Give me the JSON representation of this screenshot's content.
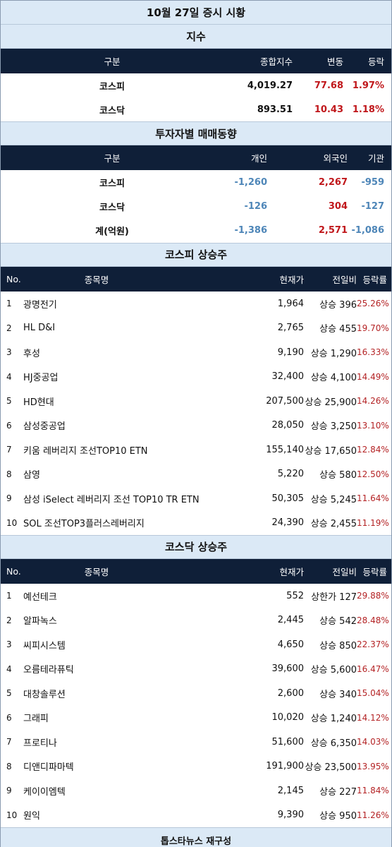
{
  "title": "10월 27일 증시 시황",
  "index_section": {
    "title": "지수",
    "headers": [
      "구분",
      "종합지수",
      "변동",
      "등락"
    ],
    "rows": [
      {
        "name": "코스피",
        "value": "4,019.27",
        "change": "77.68",
        "pct": "1.97%"
      },
      {
        "name": "코스닥",
        "value": "893.51",
        "change": "10.43",
        "pct": "1.18%"
      }
    ]
  },
  "investor_section": {
    "title": "투자자별 매매동향",
    "headers": [
      "구분",
      "개인",
      "외국인",
      "기관"
    ],
    "rows": [
      {
        "name": "코스피",
        "individual": "-1,260",
        "foreign": "2,267",
        "institution": "-959"
      },
      {
        "name": "코스닥",
        "individual": "-126",
        "foreign": "304",
        "institution": "-127"
      },
      {
        "name": "계(억원)",
        "individual": "-1,386",
        "foreign": "2,571",
        "institution": "-1,086"
      }
    ]
  },
  "kospi_section": {
    "title": "코스피 상승주",
    "headers": [
      "No.",
      "종목명",
      "현재가",
      "전일비",
      "등락률"
    ],
    "rows": [
      {
        "no": "1",
        "name": "광명전기",
        "price": "1,964",
        "change": "상승 396",
        "pct": "25.26%"
      },
      {
        "no": "2",
        "name": "HL D&I",
        "price": "2,765",
        "change": "상승 455",
        "pct": "19.70%"
      },
      {
        "no": "3",
        "name": "후성",
        "price": "9,190",
        "change": "상승 1,290",
        "pct": "16.33%"
      },
      {
        "no": "4",
        "name": "HJ중공업",
        "price": "32,400",
        "change": "상승 4,100",
        "pct": "14.49%"
      },
      {
        "no": "5",
        "name": "HD현대",
        "price": "207,500",
        "change": "상승 25,900",
        "pct": "14.26%"
      },
      {
        "no": "6",
        "name": "삼성중공업",
        "price": "28,050",
        "change": "상승 3,250",
        "pct": "13.10%"
      },
      {
        "no": "7",
        "name": "키움 레버리지 조선TOP10 ETN",
        "price": "155,140",
        "change": "상승 17,650",
        "pct": "12.84%"
      },
      {
        "no": "8",
        "name": "삼영",
        "price": "5,220",
        "change": "상승 580",
        "pct": "12.50%"
      },
      {
        "no": "9",
        "name": "삼성 iSelect 레버리지 조선 TOP10 TR ETN",
        "price": "50,305",
        "change": "상승 5,245",
        "pct": "11.64%"
      },
      {
        "no": "10",
        "name": "SOL 조선TOP3플러스레버리지",
        "price": "24,390",
        "change": "상승 2,455",
        "pct": "11.19%"
      }
    ]
  },
  "kosdaq_section": {
    "title": "코스닥 상승주",
    "headers": [
      "No.",
      "종목명",
      "현재가",
      "전일비",
      "등락률"
    ],
    "rows": [
      {
        "no": "1",
        "name": "예선테크",
        "price": "552",
        "change": "상한가 127",
        "pct": "29.88%"
      },
      {
        "no": "2",
        "name": "알파녹스",
        "price": "2,445",
        "change": "상승 542",
        "pct": "28.48%"
      },
      {
        "no": "3",
        "name": "씨피시스템",
        "price": "4,650",
        "change": "상승 850",
        "pct": "22.37%"
      },
      {
        "no": "4",
        "name": "오름테라퓨틱",
        "price": "39,600",
        "change": "상승 5,600",
        "pct": "16.47%"
      },
      {
        "no": "5",
        "name": "대창솔루션",
        "price": "2,600",
        "change": "상승 340",
        "pct": "15.04%"
      },
      {
        "no": "6",
        "name": "그래피",
        "price": "10,020",
        "change": "상승 1,240",
        "pct": "14.12%"
      },
      {
        "no": "7",
        "name": "프로티나",
        "price": "51,600",
        "change": "상승 6,350",
        "pct": "14.03%"
      },
      {
        "no": "8",
        "name": "디앤디파마텍",
        "price": "191,900",
        "change": "상승 23,500",
        "pct": "13.95%"
      },
      {
        "no": "9",
        "name": "케이이엠텍",
        "price": "2,145",
        "change": "상승 227",
        "pct": "11.84%"
      },
      {
        "no": "10",
        "name": "원익",
        "price": "9,390",
        "change": "상승 950",
        "pct": "11.26%"
      }
    ]
  },
  "footer": "톱스타뉴스 재구성",
  "colors": {
    "header_bg": "#0f1f38",
    "band_bg": "#dbe9f6",
    "up": "#c0171b",
    "down": "#4e86b8"
  }
}
